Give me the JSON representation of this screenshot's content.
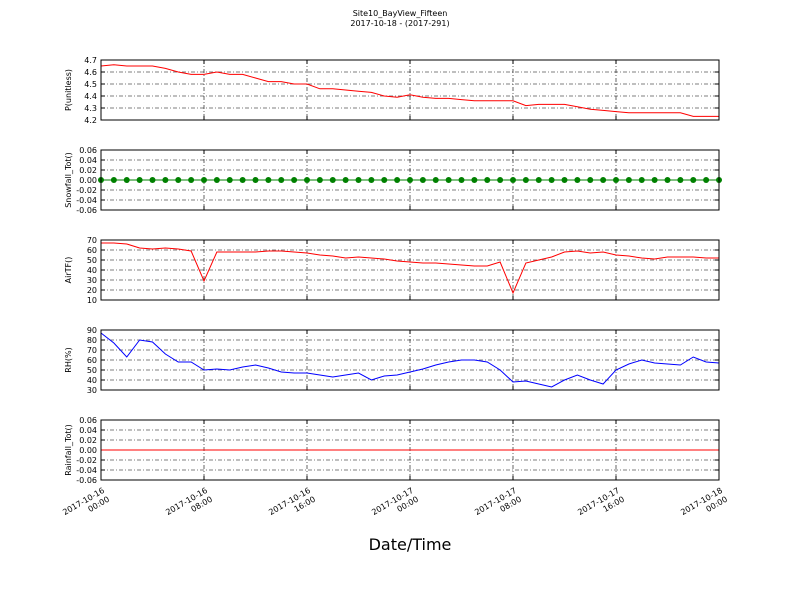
{
  "title": "Site10_BayView_Fifteen",
  "subtitle": "2017-10-18 - (2017-291)",
  "x_axis": {
    "label": "Date/Time",
    "xlim": [
      "2017-10-16 00:00",
      "2017-10-18 00:00"
    ],
    "xticks": [
      {
        "value": "2017-10-16 00:00",
        "label": [
          "2017-10-16",
          "00:00"
        ]
      },
      {
        "value": "2017-10-16 08:00",
        "label": [
          "2017-10-16",
          "08:00"
        ]
      },
      {
        "value": "2017-10-16 16:00",
        "label": [
          "2017-10-16",
          "16:00"
        ]
      },
      {
        "value": "2017-10-17 00:00",
        "label": [
          "2017-10-17",
          "00:00"
        ]
      },
      {
        "value": "2017-10-17 08:00",
        "label": [
          "2017-10-17",
          "08:00"
        ]
      },
      {
        "value": "2017-10-17 16:00",
        "label": [
          "2017-10-17",
          "16:00"
        ]
      },
      {
        "value": "2017-10-18 00:00",
        "label": [
          "2017-10-18",
          "00:00"
        ]
      }
    ],
    "grid": true
  },
  "chart_data": [
    {
      "type": "line",
      "ylabel": "P(unitless)",
      "color": "#ff0000",
      "markers": false,
      "ylim": [
        4.2,
        4.7
      ],
      "yticks": [
        4.2,
        4.3,
        4.4,
        4.5,
        4.6,
        4.7
      ],
      "grid": true,
      "x": [
        "2017-10-16 00:00",
        "2017-10-16 01:00",
        "2017-10-16 02:00",
        "2017-10-16 03:00",
        "2017-10-16 04:00",
        "2017-10-16 05:00",
        "2017-10-16 06:00",
        "2017-10-16 07:00",
        "2017-10-16 08:00",
        "2017-10-16 09:00",
        "2017-10-16 10:00",
        "2017-10-16 11:00",
        "2017-10-16 12:00",
        "2017-10-16 13:00",
        "2017-10-16 14:00",
        "2017-10-16 15:00",
        "2017-10-16 16:00",
        "2017-10-16 17:00",
        "2017-10-16 18:00",
        "2017-10-16 19:00",
        "2017-10-16 20:00",
        "2017-10-16 21:00",
        "2017-10-16 22:00",
        "2017-10-16 23:00",
        "2017-10-17 00:00",
        "2017-10-17 01:00",
        "2017-10-17 02:00",
        "2017-10-17 03:00",
        "2017-10-17 04:00",
        "2017-10-17 05:00",
        "2017-10-17 06:00",
        "2017-10-17 07:00",
        "2017-10-17 08:00",
        "2017-10-17 09:00",
        "2017-10-17 10:00",
        "2017-10-17 11:00",
        "2017-10-17 12:00",
        "2017-10-17 13:00",
        "2017-10-17 14:00",
        "2017-10-17 15:00",
        "2017-10-17 16:00",
        "2017-10-17 17:00",
        "2017-10-17 18:00",
        "2017-10-17 19:00",
        "2017-10-17 20:00",
        "2017-10-17 21:00",
        "2017-10-17 22:00",
        "2017-10-17 23:00",
        "2017-10-18 00:00"
      ],
      "values": [
        4.65,
        4.66,
        4.65,
        4.65,
        4.65,
        4.63,
        4.6,
        4.58,
        4.58,
        4.6,
        4.58,
        4.58,
        4.55,
        4.52,
        4.52,
        4.5,
        4.5,
        4.46,
        4.46,
        4.45,
        4.44,
        4.43,
        4.4,
        4.39,
        4.41,
        4.39,
        4.38,
        4.38,
        4.37,
        4.36,
        4.36,
        4.36,
        4.36,
        4.32,
        4.33,
        4.33,
        4.33,
        4.31,
        4.29,
        4.28,
        4.27,
        4.26,
        4.26,
        4.26,
        4.26,
        4.26,
        4.23,
        4.23,
        4.23
      ]
    },
    {
      "type": "line",
      "ylabel": "Snowfall_Tot()",
      "color": "#008000",
      "markers": true,
      "ylim": [
        -0.06,
        0.06
      ],
      "yticks": [
        -0.06,
        -0.04,
        -0.02,
        {
          "value": 0,
          "label": "0.00"
        },
        0.02,
        0.04,
        0.06
      ],
      "grid": true,
      "x": [
        "2017-10-16 00:00",
        "2017-10-16 01:00",
        "2017-10-16 02:00",
        "2017-10-16 03:00",
        "2017-10-16 04:00",
        "2017-10-16 05:00",
        "2017-10-16 06:00",
        "2017-10-16 07:00",
        "2017-10-16 08:00",
        "2017-10-16 09:00",
        "2017-10-16 10:00",
        "2017-10-16 11:00",
        "2017-10-16 12:00",
        "2017-10-16 13:00",
        "2017-10-16 14:00",
        "2017-10-16 15:00",
        "2017-10-16 16:00",
        "2017-10-16 17:00",
        "2017-10-16 18:00",
        "2017-10-16 19:00",
        "2017-10-16 20:00",
        "2017-10-16 21:00",
        "2017-10-16 22:00",
        "2017-10-16 23:00",
        "2017-10-17 00:00",
        "2017-10-17 01:00",
        "2017-10-17 02:00",
        "2017-10-17 03:00",
        "2017-10-17 04:00",
        "2017-10-17 05:00",
        "2017-10-17 06:00",
        "2017-10-17 07:00",
        "2017-10-17 08:00",
        "2017-10-17 09:00",
        "2017-10-17 10:00",
        "2017-10-17 11:00",
        "2017-10-17 12:00",
        "2017-10-17 13:00",
        "2017-10-17 14:00",
        "2017-10-17 15:00",
        "2017-10-17 16:00",
        "2017-10-17 17:00",
        "2017-10-17 18:00",
        "2017-10-17 19:00",
        "2017-10-17 20:00",
        "2017-10-17 21:00",
        "2017-10-17 22:00",
        "2017-10-17 23:00",
        "2017-10-18 00:00"
      ],
      "values": [
        0,
        0,
        0,
        0,
        0,
        0,
        0,
        0,
        0,
        0,
        0,
        0,
        0,
        0,
        0,
        0,
        0,
        0,
        0,
        0,
        0,
        0,
        0,
        0,
        0,
        0,
        0,
        0,
        0,
        0,
        0,
        0,
        0,
        0,
        0,
        0,
        0,
        0,
        0,
        0,
        0,
        0,
        0,
        0,
        0,
        0,
        0,
        0,
        0
      ]
    },
    {
      "type": "line",
      "ylabel": "AirTF()",
      "color": "#ff0000",
      "markers": false,
      "ylim": [
        10,
        70
      ],
      "yticks": [
        10,
        20,
        30,
        40,
        50,
        60,
        70
      ],
      "grid": true,
      "x": [
        "2017-10-16 00:00",
        "2017-10-16 01:00",
        "2017-10-16 02:00",
        "2017-10-16 03:00",
        "2017-10-16 04:00",
        "2017-10-16 05:00",
        "2017-10-16 06:00",
        "2017-10-16 07:00",
        "2017-10-16 08:00",
        "2017-10-16 09:00",
        "2017-10-16 10:00",
        "2017-10-16 11:00",
        "2017-10-16 12:00",
        "2017-10-16 13:00",
        "2017-10-16 14:00",
        "2017-10-16 15:00",
        "2017-10-16 16:00",
        "2017-10-16 17:00",
        "2017-10-16 18:00",
        "2017-10-16 19:00",
        "2017-10-16 20:00",
        "2017-10-16 21:00",
        "2017-10-16 22:00",
        "2017-10-16 23:00",
        "2017-10-17 00:00",
        "2017-10-17 01:00",
        "2017-10-17 02:00",
        "2017-10-17 03:00",
        "2017-10-17 04:00",
        "2017-10-17 05:00",
        "2017-10-17 06:00",
        "2017-10-17 07:00",
        "2017-10-17 08:00",
        "2017-10-17 09:00",
        "2017-10-17 10:00",
        "2017-10-17 11:00",
        "2017-10-17 12:00",
        "2017-10-17 13:00",
        "2017-10-17 14:00",
        "2017-10-17 15:00",
        "2017-10-17 16:00",
        "2017-10-17 17:00",
        "2017-10-17 18:00",
        "2017-10-17 19:00",
        "2017-10-17 20:00",
        "2017-10-17 21:00",
        "2017-10-17 22:00",
        "2017-10-17 23:00",
        "2017-10-18 00:00"
      ],
      "values": [
        67,
        67,
        66,
        62,
        61,
        62,
        61,
        59,
        29,
        58,
        58,
        58,
        58,
        59,
        59,
        58,
        57,
        55,
        54,
        52,
        53,
        52,
        51,
        49,
        48,
        47,
        47,
        46,
        45,
        44,
        44,
        48,
        17,
        47,
        50,
        53,
        58,
        59,
        57,
        58,
        55,
        54,
        52,
        51,
        53,
        53,
        53,
        52,
        52
      ]
    },
    {
      "type": "line",
      "ylabel": "RH(%)",
      "color": "#0000ff",
      "markers": false,
      "ylim": [
        30,
        90
      ],
      "yticks": [
        30,
        40,
        50,
        60,
        70,
        80,
        90
      ],
      "grid": true,
      "x": [
        "2017-10-16 00:00",
        "2017-10-16 01:00",
        "2017-10-16 02:00",
        "2017-10-16 03:00",
        "2017-10-16 04:00",
        "2017-10-16 05:00",
        "2017-10-16 06:00",
        "2017-10-16 07:00",
        "2017-10-16 08:00",
        "2017-10-16 09:00",
        "2017-10-16 10:00",
        "2017-10-16 11:00",
        "2017-10-16 12:00",
        "2017-10-16 13:00",
        "2017-10-16 14:00",
        "2017-10-16 15:00",
        "2017-10-16 16:00",
        "2017-10-16 17:00",
        "2017-10-16 18:00",
        "2017-10-16 19:00",
        "2017-10-16 20:00",
        "2017-10-16 21:00",
        "2017-10-16 22:00",
        "2017-10-16 23:00",
        "2017-10-17 00:00",
        "2017-10-17 01:00",
        "2017-10-17 02:00",
        "2017-10-17 03:00",
        "2017-10-17 04:00",
        "2017-10-17 05:00",
        "2017-10-17 06:00",
        "2017-10-17 07:00",
        "2017-10-17 08:00",
        "2017-10-17 09:00",
        "2017-10-17 10:00",
        "2017-10-17 11:00",
        "2017-10-17 12:00",
        "2017-10-17 13:00",
        "2017-10-17 14:00",
        "2017-10-17 15:00",
        "2017-10-17 16:00",
        "2017-10-17 17:00",
        "2017-10-17 18:00",
        "2017-10-17 19:00",
        "2017-10-17 20:00",
        "2017-10-17 21:00",
        "2017-10-17 22:00",
        "2017-10-17 23:00",
        "2017-10-18 00:00"
      ],
      "values": [
        87,
        77,
        63,
        80,
        78,
        66,
        58,
        58,
        50,
        51,
        50,
        53,
        55,
        52,
        48,
        47,
        47,
        45,
        43,
        45,
        47,
        40,
        44,
        45,
        48,
        51,
        55,
        58,
        60,
        60,
        58,
        50,
        38,
        39,
        36,
        33,
        40,
        45,
        40,
        36,
        50,
        56,
        60,
        57,
        56,
        55,
        63,
        58,
        57
      ]
    },
    {
      "type": "line",
      "ylabel": "Rainfall_Tot()",
      "color": "#ff0000",
      "markers": false,
      "ylim": [
        -0.06,
        0.06
      ],
      "yticks": [
        -0.06,
        -0.04,
        -0.02,
        {
          "value": 0,
          "label": "0.00"
        },
        0.02,
        0.04,
        0.06
      ],
      "grid": true,
      "x": [
        "2017-10-16 00:00",
        "2017-10-16 01:00",
        "2017-10-16 02:00",
        "2017-10-16 03:00",
        "2017-10-16 04:00",
        "2017-10-16 05:00",
        "2017-10-16 06:00",
        "2017-10-16 07:00",
        "2017-10-16 08:00",
        "2017-10-16 09:00",
        "2017-10-16 10:00",
        "2017-10-16 11:00",
        "2017-10-16 12:00",
        "2017-10-16 13:00",
        "2017-10-16 14:00",
        "2017-10-16 15:00",
        "2017-10-16 16:00",
        "2017-10-16 17:00",
        "2017-10-16 18:00",
        "2017-10-16 19:00",
        "2017-10-16 20:00",
        "2017-10-16 21:00",
        "2017-10-16 22:00",
        "2017-10-16 23:00",
        "2017-10-17 00:00",
        "2017-10-17 01:00",
        "2017-10-17 02:00",
        "2017-10-17 03:00",
        "2017-10-17 04:00",
        "2017-10-17 05:00",
        "2017-10-17 06:00",
        "2017-10-17 07:00",
        "2017-10-17 08:00",
        "2017-10-17 09:00",
        "2017-10-17 10:00",
        "2017-10-17 11:00",
        "2017-10-17 12:00",
        "2017-10-17 13:00",
        "2017-10-17 14:00",
        "2017-10-17 15:00",
        "2017-10-17 16:00",
        "2017-10-17 17:00",
        "2017-10-17 18:00",
        "2017-10-17 19:00",
        "2017-10-17 20:00",
        "2017-10-17 21:00",
        "2017-10-17 22:00",
        "2017-10-17 23:00",
        "2017-10-18 00:00"
      ],
      "values": [
        0,
        0,
        0,
        0,
        0,
        0,
        0,
        0,
        0,
        0,
        0,
        0,
        0,
        0,
        0,
        0,
        0,
        0,
        0,
        0,
        0,
        0,
        0,
        0,
        0,
        0,
        0,
        0,
        0,
        0,
        0,
        0,
        0,
        0,
        0,
        0,
        0,
        0,
        0,
        0,
        0,
        0,
        0,
        0,
        0,
        0,
        0,
        0,
        0
      ]
    }
  ]
}
